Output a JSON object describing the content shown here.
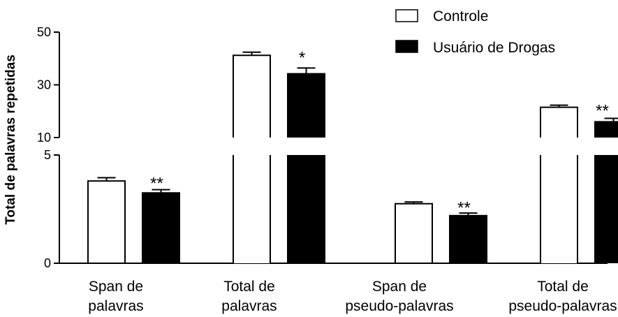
{
  "chart_data": {
    "type": "bar",
    "ylabel": "Total de palavras repetidas",
    "y_axis_break": true,
    "ylim_lower": [
      0,
      5
    ],
    "ylim_upper": [
      10,
      50
    ],
    "y_ticks_lower": [
      "0",
      "5"
    ],
    "y_ticks_upper": [
      "10",
      "30",
      "50"
    ],
    "categories": [
      [
        "Span de",
        "palavras"
      ],
      [
        "Total de",
        "palavras"
      ],
      [
        "Span de",
        "pseudo-palavras"
      ],
      [
        "Total de",
        "pseudo-palavras"
      ]
    ],
    "series": [
      {
        "name": "Controle",
        "color": "#ffffff",
        "values": [
          3.8,
          41.2,
          2.75,
          21.5
        ],
        "errors": [
          0.15,
          1.2,
          0.08,
          0.8
        ]
      },
      {
        "name": "Usuário de Drogas",
        "color": "#000000",
        "values": [
          3.25,
          34.2,
          2.2,
          16.0
        ],
        "errors": [
          0.15,
          2.2,
          0.12,
          1.3
        ]
      }
    ],
    "significance": [
      "**",
      "*",
      "**",
      "**"
    ],
    "legend_position": "top-right",
    "grid": false
  }
}
